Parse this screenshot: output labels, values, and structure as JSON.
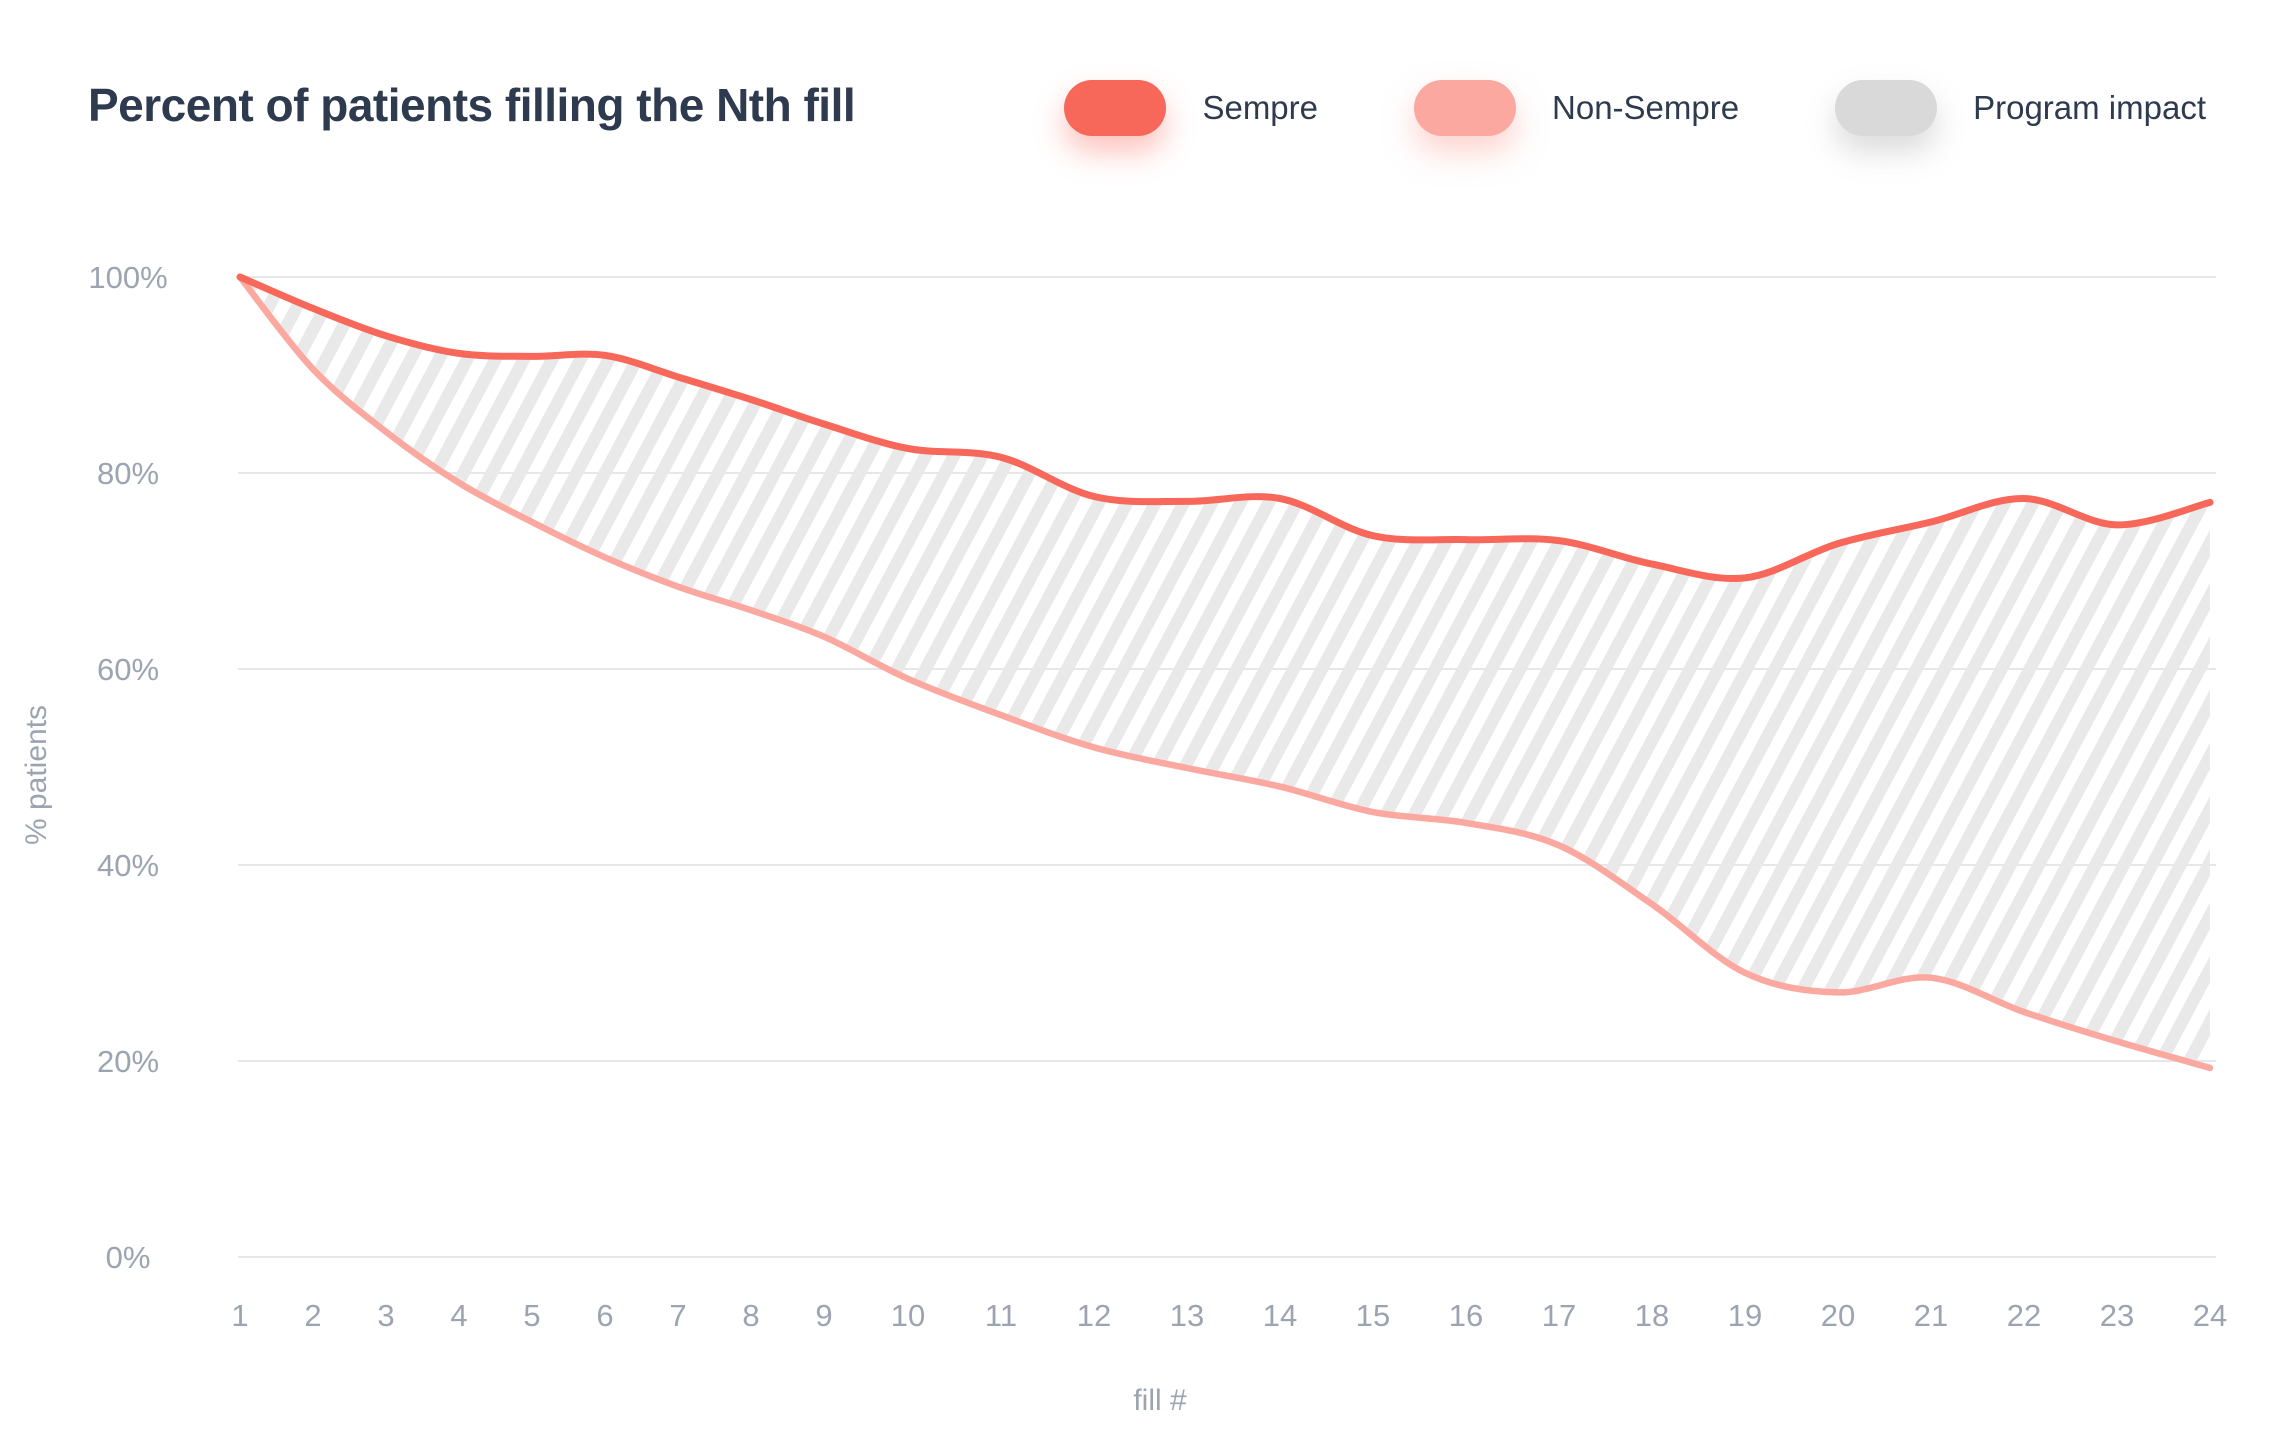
{
  "title": "Percent of patients filling the Nth fill",
  "legend": [
    {
      "label": "Sempre",
      "color": "#F7685B",
      "glow": "rgba(247,104,91,0.40)"
    },
    {
      "label": "Non-Sempre",
      "color": "#FBA9A0",
      "glow": "rgba(251,169,160,0.50)"
    },
    {
      "label": "Program impact",
      "color": "#D9D9D9",
      "glow": "rgba(140,140,140,0.30)"
    }
  ],
  "colors": {
    "title_text": "#2E3A4E",
    "axis_text": "#9CA4B2",
    "gridline": "#E6E7E9",
    "hatch": "#E9E9E9",
    "background": "#FFFFFF"
  },
  "chart_data": {
    "type": "area",
    "title": "Percent of patients filling the Nth fill",
    "xlabel": "fill #",
    "ylabel": "% patients",
    "x": [
      1,
      2,
      3,
      4,
      5,
      6,
      7,
      8,
      9,
      10,
      11,
      12,
      13,
      14,
      15,
      16,
      17,
      18,
      19,
      20,
      21,
      22,
      23,
      24
    ],
    "series": [
      {
        "name": "Sempre",
        "color": "#F7685B",
        "values": [
          100,
          96.8,
          94.0,
          92.2,
          91.9,
          92.0,
          89.8,
          87.5,
          85.0,
          82.5,
          81.6,
          77.6,
          77.1,
          77.4,
          73.6,
          73.2,
          73.1,
          70.7,
          69.3,
          72.8,
          75.0,
          77.4,
          74.7,
          77.0
        ]
      },
      {
        "name": "Non-Sempre",
        "color": "#FBA9A0",
        "values": [
          100,
          90.6,
          84.2,
          79.0,
          75.0,
          71.4,
          68.4,
          66.0,
          63.3,
          59.0,
          55.3,
          52.0,
          49.9,
          48.0,
          45.4,
          44.3,
          42.0,
          36.0,
          29.0,
          27.0,
          28.5,
          25.0,
          22.0,
          19.3
        ]
      },
      {
        "name": "Program impact",
        "type": "hatched-band-between-series",
        "color": "#E9E9E9"
      }
    ],
    "ylim": [
      0,
      100
    ],
    "yticks": [
      {
        "value": 100,
        "label": "100%"
      },
      {
        "value": 80,
        "label": "80%"
      },
      {
        "value": 60,
        "label": "60%"
      },
      {
        "value": 40,
        "label": "40%"
      },
      {
        "value": 20,
        "label": "20%"
      },
      {
        "value": 0,
        "label": "0%"
      }
    ],
    "grid": true,
    "legend_position": "top-right"
  }
}
